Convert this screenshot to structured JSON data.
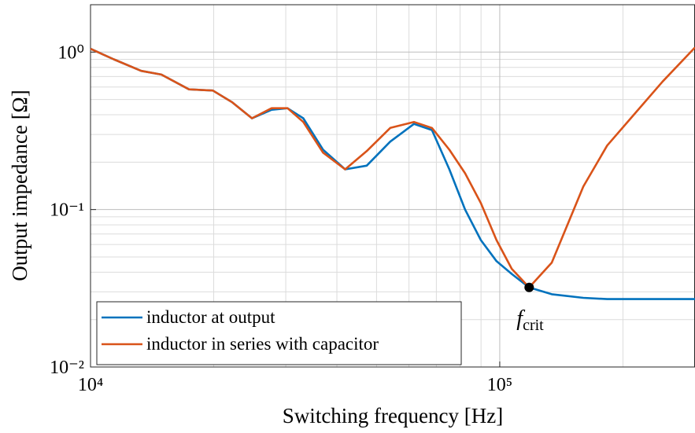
{
  "chart_data": {
    "type": "line",
    "xlabel": "Switching frequency [Hz]",
    "ylabel": "Output impedance [Ω]",
    "xscale": "log",
    "yscale": "log",
    "xlim": [
      10000,
      300000
    ],
    "ylim": [
      0.01,
      2
    ],
    "xticks": [
      {
        "value": 10000,
        "label": "10⁴"
      },
      {
        "value": 100000,
        "label": "10⁵"
      }
    ],
    "yticks": [
      {
        "value": 0.01,
        "label": "10⁻²"
      },
      {
        "value": 0.1,
        "label": "10⁻¹"
      },
      {
        "value": 1,
        "label": "10⁰"
      }
    ],
    "xminorticks": [
      20000,
      30000,
      40000,
      50000,
      60000,
      70000,
      80000,
      90000,
      200000
    ],
    "yminorticks": [
      0.02,
      0.03,
      0.04,
      0.05,
      0.06,
      0.07,
      0.08,
      0.09,
      0.2,
      0.3,
      0.4,
      0.5,
      0.6,
      0.7,
      0.8,
      0.9
    ],
    "grid": true,
    "minor_grid": true,
    "legend": "lower left",
    "x": [
      10000,
      11400,
      13300,
      14900,
      17400,
      19900,
      22200,
      24800,
      27700,
      30300,
      33100,
      37000,
      41900,
      47300,
      54000,
      61700,
      68300,
      75300,
      82300,
      89900,
      98200,
      107000,
      118000,
      134000,
      160000,
      183000,
      209000,
      250000,
      300000
    ],
    "series": [
      {
        "name": "inductor at output",
        "color": "#0072bd",
        "values": [
          1.05,
          0.9,
          0.76,
          0.72,
          0.58,
          0.57,
          0.48,
          0.38,
          0.43,
          0.44,
          0.38,
          0.24,
          0.18,
          0.19,
          0.27,
          0.35,
          0.32,
          0.18,
          0.1,
          0.064,
          0.047,
          0.039,
          0.032,
          0.029,
          0.0275,
          0.027,
          0.027,
          0.027,
          0.027
        ]
      },
      {
        "name": "inductor in series with capacitor",
        "color": "#d95319",
        "values": [
          1.05,
          0.9,
          0.76,
          0.72,
          0.58,
          0.57,
          0.48,
          0.38,
          0.44,
          0.44,
          0.36,
          0.23,
          0.18,
          0.235,
          0.33,
          0.36,
          0.33,
          0.24,
          0.17,
          0.11,
          0.064,
          0.042,
          0.032,
          0.046,
          0.14,
          0.255,
          0.38,
          0.65,
          1.07
        ]
      }
    ],
    "annotation": {
      "label": "f",
      "subscript": "crit",
      "x": 118000,
      "y": 0.032
    }
  }
}
